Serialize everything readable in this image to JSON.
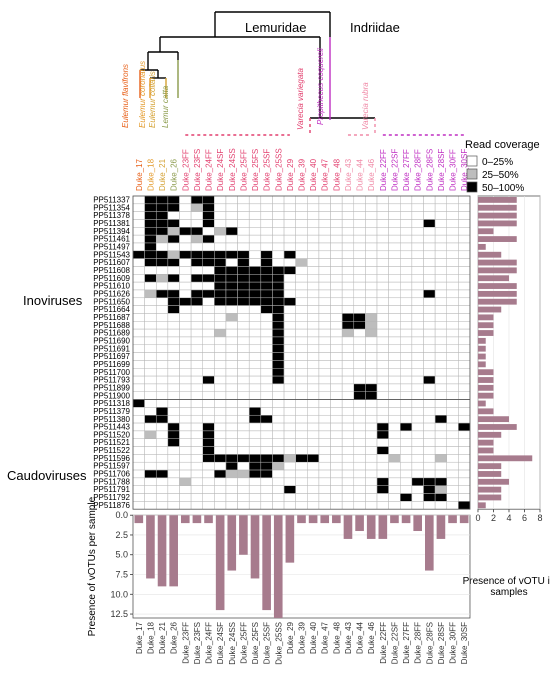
{
  "chart_data": {
    "type": "heatmap",
    "tree": {
      "families": [
        "Lemuridae",
        "Indriidae"
      ],
      "species": [
        {
          "name": "Eulemur flavifrons",
          "color": "#e8611a"
        },
        {
          "name": "Eulemur coronatus",
          "color": "#e39a2b"
        },
        {
          "name": "Eulemur collaris",
          "color": "#d4a132"
        },
        {
          "name": "Lemur catta",
          "color": "#8a9a4a"
        },
        {
          "name": "Varecia variegata",
          "color": "#e23f6e"
        },
        {
          "name": "Varecia rubra",
          "color": "#f08aa7"
        },
        {
          "name": "Propithecus coquereli",
          "color": "#bf2ec2"
        }
      ]
    },
    "samples": [
      "Duke_17",
      "Duke_18",
      "Duke_21",
      "Duke_26",
      "Duke_23FF",
      "Duke_23FS",
      "Duke_24FF",
      "Duke_24SF",
      "Duke_24SS",
      "Duke_25FF",
      "Duke_25FS",
      "Duke_25SF",
      "Duke_25SS",
      "Duke_29",
      "Duke_39",
      "Duke_40",
      "Duke_47",
      "Duke_48",
      "Duke_43",
      "Duke_44",
      "Duke_46",
      "Duke_22FF",
      "Duke_22SF",
      "Duke_27FF",
      "Duke_28FF",
      "Duke_28FS",
      "Duke_28SF",
      "Duke_30FF",
      "Duke_30SF"
    ],
    "sample_colors": [
      "#e8611a",
      "#e39a2b",
      "#d4a132",
      "#8a9a4a",
      "#e23f6e",
      "#e23f6e",
      "#e23f6e",
      "#e23f6e",
      "#e23f6e",
      "#e23f6e",
      "#e23f6e",
      "#e23f6e",
      "#e23f6e",
      "#e23f6e",
      "#e23f6e",
      "#e23f6e",
      "#e23f6e",
      "#e23f6e",
      "#f08aa7",
      "#f08aa7",
      "#f08aa7",
      "#bf2ec2",
      "#bf2ec2",
      "#bf2ec2",
      "#bf2ec2",
      "#bf2ec2",
      "#bf2ec2",
      "#bf2ec2",
      "#bf2ec2"
    ],
    "votus": [
      "PP511337",
      "PP511354",
      "PP511378",
      "PP511381",
      "PP511394",
      "PP511461",
      "PP511497",
      "PP511543",
      "PP511607",
      "PP511608",
      "PP511609",
      "PP511610",
      "PP511626",
      "PP511650",
      "PP511664",
      "PP511687",
      "PP511688",
      "PP511689",
      "PP511690",
      "PP511691",
      "PP511697",
      "PP511699",
      "PP511700",
      "PP511793",
      "PP511899",
      "PP511900",
      "PP511318",
      "PP511379",
      "PP511380",
      "PP511443",
      "PP511520",
      "PP511521",
      "PP511522",
      "PP511596",
      "PP511597",
      "PP511706",
      "PP511788",
      "PP511791",
      "PP511792",
      "PP511876"
    ],
    "groups": [
      {
        "label": "Inoviruses",
        "start": 0,
        "end": 25
      },
      {
        "label": "Caudoviruses",
        "start": 26,
        "end": 39
      }
    ],
    "cells": [
      [
        0,
        1,
        2,
        0,
        2,
        0,
        2,
        0,
        0,
        0,
        2,
        0,
        2
      ],
      [
        1,
        1,
        2,
        0,
        2,
        0,
        2,
        0,
        0,
        0,
        1,
        1,
        2
      ],
      [
        2,
        1,
        2,
        0,
        2,
        0,
        0,
        0,
        0,
        0,
        0,
        0,
        2
      ],
      [
        3,
        1,
        2,
        0,
        2,
        0,
        2,
        0,
        0,
        0,
        0,
        0,
        2
      ],
      [
        3,
        25,
        2
      ],
      [
        4,
        1,
        2,
        0,
        2,
        0,
        1,
        0,
        2,
        0,
        2,
        0,
        0,
        0,
        1,
        1,
        2
      ],
      [
        5,
        1,
        2,
        0,
        1,
        0,
        2,
        0,
        0,
        0,
        1,
        1,
        2
      ],
      [
        6,
        1,
        2
      ],
      [
        7,
        0,
        2,
        0,
        2,
        0,
        2,
        0,
        1,
        0,
        2,
        0,
        2,
        0,
        2,
        0,
        2,
        0,
        2,
        0,
        2,
        0,
        0,
        0,
        2,
        0,
        0,
        0,
        2
      ],
      [
        8,
        1,
        2,
        0,
        2,
        0,
        2,
        0,
        0,
        0,
        2,
        0,
        2,
        0,
        2,
        0,
        0,
        0,
        2,
        0,
        0,
        0,
        2,
        0,
        0,
        0,
        0,
        0,
        1
      ],
      [
        9,
        7,
        2,
        0,
        2,
        0,
        2,
        0,
        2,
        0,
        2,
        0,
        2
      ],
      [
        9,
        8,
        2,
        0,
        2,
        0,
        2,
        0,
        2,
        0,
        2,
        0,
        2
      ],
      [
        10,
        1,
        2,
        0,
        1,
        0,
        2,
        0,
        0,
        0,
        2,
        0,
        2
      ],
      [
        10,
        7,
        2,
        0,
        2,
        0,
        2,
        0,
        2,
        0,
        2,
        0,
        2
      ],
      [
        11,
        7,
        2,
        0,
        2,
        0,
        2,
        0,
        2,
        0,
        2,
        0,
        2
      ],
      [
        12,
        1,
        1,
        0,
        2,
        0,
        2,
        0,
        0,
        0,
        2,
        0,
        2
      ],
      [
        12,
        7,
        2,
        0,
        2,
        0,
        2,
        0,
        2,
        0,
        2,
        0,
        2
      ],
      [
        12,
        25,
        2
      ],
      [
        13,
        3,
        2,
        0,
        2,
        0,
        2
      ],
      [
        13,
        7,
        2,
        0,
        2,
        0,
        2,
        0,
        2,
        0,
        2,
        0,
        2
      ],
      [
        13,
        13,
        2
      ],
      [
        14,
        3,
        2
      ],
      [
        14,
        11,
        2
      ],
      [
        14,
        12,
        2
      ],
      [
        15,
        8,
        1
      ],
      [
        15,
        12,
        2
      ],
      [
        15,
        18,
        2
      ],
      [
        15,
        19,
        2
      ],
      [
        15,
        20,
        1
      ],
      [
        16,
        12,
        2
      ],
      [
        16,
        18,
        2
      ],
      [
        16,
        19,
        2
      ],
      [
        16,
        20,
        1
      ],
      [
        17,
        7,
        1
      ],
      [
        17,
        12,
        2
      ],
      [
        17,
        18,
        1
      ],
      [
        17,
        20,
        1
      ],
      [
        18,
        12,
        2
      ],
      [
        19,
        12,
        2
      ],
      [
        20,
        12,
        2
      ],
      [
        21,
        12,
        2
      ],
      [
        22,
        12,
        2
      ],
      [
        23,
        6,
        2
      ],
      [
        23,
        12,
        2
      ],
      [
        23,
        25,
        2
      ],
      [
        24,
        19,
        2
      ],
      [
        24,
        20,
        2
      ],
      [
        25,
        19,
        2
      ],
      [
        25,
        20,
        2
      ],
      [
        26,
        0,
        2
      ],
      [
        27,
        2,
        2
      ],
      [
        27,
        10,
        2
      ],
      [
        28,
        1,
        2
      ],
      [
        28,
        2,
        2
      ],
      [
        28,
        10,
        2
      ],
      [
        28,
        11,
        2
      ],
      [
        28,
        26,
        2
      ],
      [
        29,
        3,
        2
      ],
      [
        29,
        6,
        2
      ],
      [
        29,
        21,
        2
      ],
      [
        29,
        23,
        2
      ],
      [
        29,
        28,
        2
      ],
      [
        30,
        1,
        1
      ],
      [
        30,
        3,
        2
      ],
      [
        30,
        6,
        2
      ],
      [
        30,
        21,
        2
      ],
      [
        31,
        3,
        2
      ],
      [
        31,
        6,
        2
      ],
      [
        32,
        6,
        2
      ],
      [
        32,
        21,
        2
      ],
      [
        33,
        6,
        2
      ],
      [
        33,
        7,
        2
      ],
      [
        33,
        8,
        2
      ],
      [
        33,
        9,
        2
      ],
      [
        33,
        10,
        2
      ],
      [
        33,
        11,
        2
      ],
      [
        33,
        12,
        2
      ],
      [
        33,
        13,
        1
      ],
      [
        33,
        14,
        2
      ],
      [
        33,
        15,
        2
      ],
      [
        33,
        22,
        1
      ],
      [
        33,
        26,
        1
      ],
      [
        34,
        8,
        2
      ],
      [
        34,
        10,
        2
      ],
      [
        34,
        11,
        2
      ],
      [
        34,
        12,
        1
      ],
      [
        35,
        1,
        2
      ],
      [
        35,
        2,
        2
      ],
      [
        35,
        7,
        2
      ],
      [
        35,
        8,
        1
      ],
      [
        35,
        9,
        1
      ],
      [
        35,
        10,
        2
      ],
      [
        35,
        11,
        2
      ],
      [
        36,
        4,
        1
      ],
      [
        36,
        21,
        2
      ],
      [
        36,
        24,
        2
      ],
      [
        36,
        25,
        2
      ],
      [
        36,
        26,
        2
      ],
      [
        37,
        13,
        2
      ],
      [
        37,
        21,
        2
      ],
      [
        37,
        25,
        2
      ],
      [
        37,
        26,
        1
      ],
      [
        38,
        23,
        2
      ],
      [
        38,
        25,
        2
      ],
      [
        38,
        26,
        2
      ],
      [
        39,
        28,
        2
      ]
    ],
    "legend": {
      "title": "Read coverage",
      "levels": [
        {
          "label": "0–25%",
          "color": "#ffffff"
        },
        {
          "label": "25–50%",
          "color": "#bdbdbd"
        },
        {
          "label": "50–100%",
          "color": "#000000"
        }
      ]
    },
    "vOTU_presence": {
      "xlabel": "Presence of vOTU in samples",
      "ticks": [
        0,
        2,
        4,
        6,
        8
      ],
      "xlim": [
        0,
        8
      ],
      "values": [
        5,
        5,
        5,
        5,
        2,
        5,
        1,
        3,
        5,
        5,
        4,
        5,
        5,
        5,
        3,
        2,
        2,
        2,
        1,
        1,
        1,
        1,
        2,
        2,
        2,
        2,
        1,
        2,
        4,
        5,
        3,
        2,
        2,
        7,
        3,
        3,
        4,
        3,
        3,
        1
      ],
      "color": "#a77b8d"
    },
    "sample_presence": {
      "ylabel": "Presence of vOTUs per sample",
      "ticks": [
        0.0,
        2.5,
        5.0,
        7.5,
        10.0,
        12.5
      ],
      "ylim": [
        0,
        13
      ],
      "values": [
        1,
        8,
        9,
        9,
        1,
        1,
        1,
        12,
        7,
        5,
        8,
        12,
        13,
        6,
        1,
        1,
        1,
        1,
        3,
        2,
        3,
        3,
        1,
        1,
        2,
        7,
        3,
        1,
        1
      ],
      "color": "#a77b8d"
    }
  }
}
